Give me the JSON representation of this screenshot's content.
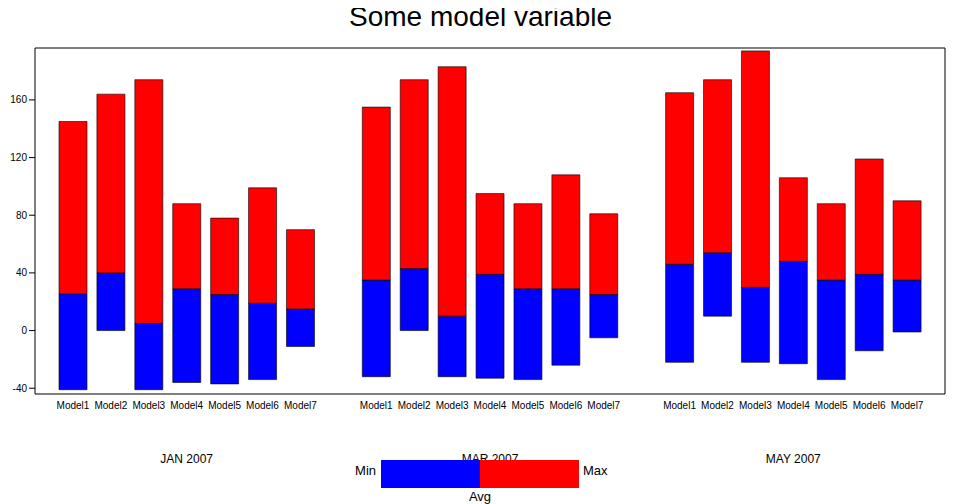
{
  "chart_data": {
    "type": "bar",
    "title": "Some model variable",
    "ylim": [
      -44,
      196
    ],
    "yticks": [
      -40,
      0,
      40,
      80,
      120,
      160
    ],
    "legend": "bottom",
    "groups": [
      {
        "name": "JAN 2007",
        "categories": [
          "Model1",
          "Model2",
          "Model3",
          "Model4",
          "Model5",
          "Model6",
          "Model7"
        ],
        "series": [
          {
            "name": "Min",
            "color": "#0000ff",
            "values": [
              -41,
              0,
              -41,
              -36,
              -37,
              -34,
              -11
            ]
          },
          {
            "name": "Avg",
            "values": [
              25.5,
              40,
              5,
              29,
              25,
              19,
              15
            ]
          },
          {
            "name": "Max",
            "color": "#ff0000",
            "values": [
              145,
              164,
              174,
              88,
              78,
              99,
              70
            ]
          }
        ]
      },
      {
        "name": "MAR 2007",
        "categories": [
          "Model1",
          "Model2",
          "Model3",
          "Model4",
          "Model5",
          "Model6",
          "Model7"
        ],
        "series": [
          {
            "name": "Min",
            "color": "#0000ff",
            "values": [
              -32,
              0,
              -32,
              -33,
              -34,
              -24,
              -5
            ]
          },
          {
            "name": "Avg",
            "values": [
              35,
              43,
              10,
              39,
              29,
              29,
              25
            ]
          },
          {
            "name": "Max",
            "color": "#ff0000",
            "values": [
              155,
              174,
              183,
              95,
              88,
              108,
              81
            ]
          }
        ]
      },
      {
        "name": "MAY 2007",
        "categories": [
          "Model1",
          "Model2",
          "Model3",
          "Model4",
          "Model5",
          "Model6",
          "Model7"
        ],
        "series": [
          {
            "name": "Min",
            "color": "#0000ff",
            "values": [
              -22,
              10,
              -22,
              -23,
              -34,
              -14,
              -1
            ]
          },
          {
            "name": "Avg",
            "values": [
              46,
              54,
              30,
              48,
              35,
              39,
              35
            ]
          },
          {
            "name": "Max",
            "color": "#ff0000",
            "values": [
              165,
              174,
              194,
              106,
              88,
              119,
              90
            ]
          }
        ]
      }
    ]
  }
}
